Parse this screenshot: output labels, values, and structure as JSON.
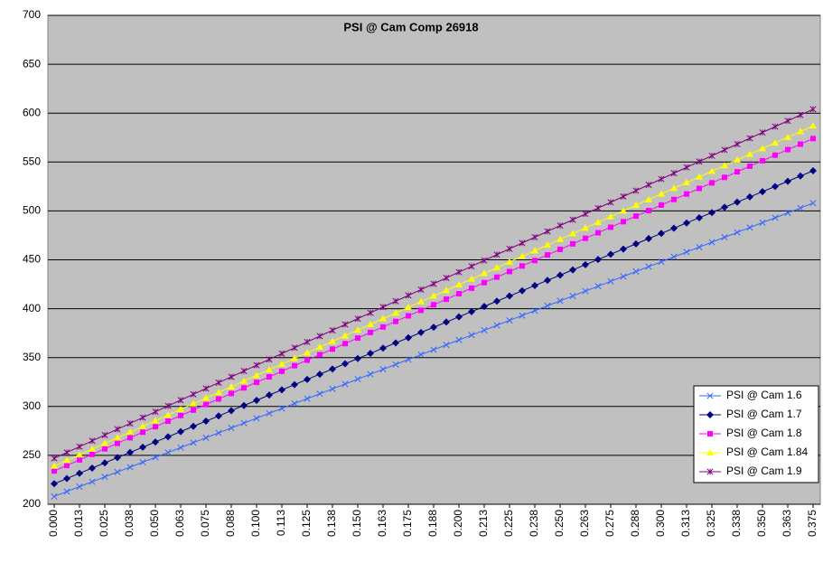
{
  "chart_data": {
    "type": "line",
    "title": "PSI @ Cam Comp 26918",
    "categories": [
      "0.000",
      null,
      "0.013",
      null,
      "0.025",
      null,
      "0.038",
      null,
      "0.050",
      null,
      "0.063",
      null,
      "0.075",
      null,
      "0.088",
      null,
      "0.100",
      null,
      "0.113",
      null,
      "0.125",
      null,
      "0.138",
      null,
      "0.150",
      null,
      "0.163",
      null,
      "0.175",
      null,
      "0.188",
      null,
      "0.200",
      null,
      "0.213",
      null,
      "0.225",
      null,
      "0.238",
      null,
      "0.250",
      null,
      "0.263",
      null,
      "0.275",
      null,
      "0.288",
      null,
      "0.300",
      null,
      "0.313",
      null,
      "0.325",
      null,
      "0.338",
      null,
      "0.350",
      null,
      "0.363",
      null,
      "0.375"
    ],
    "series": [
      {
        "name": "PSI @ Cam 1.6",
        "color": "#3366ff",
        "marker": "x",
        "values": [
          208,
          213,
          218,
          223,
          228,
          233,
          238,
          243,
          248,
          253,
          258,
          263,
          268,
          273,
          278,
          283,
          288,
          293,
          298,
          303,
          308,
          313,
          318,
          323,
          328,
          333,
          338,
          343,
          348,
          353,
          358,
          363,
          368,
          373,
          378,
          383,
          388,
          393,
          398,
          403,
          408,
          413,
          418,
          423,
          428,
          433,
          438,
          443,
          448,
          453,
          458,
          463,
          468,
          473,
          478,
          483,
          488,
          493,
          498,
          503,
          508
        ]
      },
      {
        "name": "PSI @ Cam 1.7",
        "color": "#000080",
        "marker": "diamond",
        "values": [
          221,
          226.3,
          231.7,
          237,
          242.3,
          247.7,
          253,
          258.3,
          263.7,
          269,
          274.3,
          279.7,
          285,
          290.3,
          295.7,
          301,
          306.3,
          311.7,
          317,
          322.3,
          327.7,
          333,
          338.3,
          343.7,
          349,
          354.3,
          359.7,
          365,
          370.3,
          375.7,
          381,
          386.3,
          391.7,
          397,
          402.3,
          407.7,
          413,
          418.3,
          423.7,
          429,
          434.3,
          439.7,
          445,
          450.3,
          455.7,
          461,
          466.3,
          471.7,
          477,
          482.3,
          487.7,
          493,
          498.3,
          503.7,
          509,
          514.3,
          519.7,
          525,
          530.3,
          535.7,
          541
        ]
      },
      {
        "name": "PSI @ Cam 1.8",
        "color": "#ff00ff",
        "marker": "square",
        "values": [
          234,
          239.7,
          245.3,
          251,
          256.7,
          262.3,
          268,
          273.7,
          279.3,
          285,
          290.7,
          296.3,
          302,
          307.7,
          313.3,
          319,
          324.7,
          330.3,
          336,
          341.7,
          347.3,
          353,
          358.7,
          364.3,
          370,
          375.7,
          381.3,
          387,
          392.7,
          398.3,
          404,
          409.7,
          415.3,
          421,
          426.7,
          432.3,
          438,
          443.7,
          449.3,
          455,
          460.7,
          466.3,
          472,
          477.7,
          483.3,
          489,
          494.7,
          500.3,
          506,
          511.7,
          517.3,
          523,
          528.7,
          534.3,
          540,
          545.7,
          551.3,
          557,
          562.7,
          568.3,
          574
        ]
      },
      {
        "name": "PSI @ Cam 1.84",
        "color": "#ffff00",
        "marker": "triangle",
        "values": [
          239,
          244.8,
          250.6,
          256.4,
          262.2,
          268,
          273.8,
          279.6,
          285.4,
          291.2,
          297,
          302.8,
          308.6,
          314.4,
          320.2,
          326,
          331.8,
          337.6,
          343.4,
          349.2,
          355,
          360.8,
          366.6,
          372.4,
          378.2,
          384,
          389.8,
          395.6,
          401.4,
          407.2,
          413,
          418.8,
          424.6,
          430.4,
          436.2,
          442,
          447.8,
          453.6,
          459.4,
          465.2,
          471,
          476.8,
          482.6,
          488.4,
          494.2,
          500,
          505.8,
          511.6,
          517.4,
          523.2,
          529,
          534.8,
          540.6,
          546.4,
          552.2,
          558,
          563.8,
          569.6,
          575.4,
          581.2,
          587
        ]
      },
      {
        "name": "PSI @ Cam 1.9",
        "color": "#800080",
        "marker": "star",
        "values": [
          247,
          253,
          258.9,
          264.9,
          270.8,
          276.8,
          282.7,
          288.7,
          294.6,
          300.6,
          306.5,
          312.5,
          318.4,
          324.4,
          330.3,
          336.3,
          342.2,
          348.2,
          354.1,
          360.1,
          366,
          372,
          377.9,
          383.9,
          389.8,
          395.8,
          401.7,
          407.7,
          413.6,
          419.6,
          425.5,
          431.5,
          437.4,
          443.4,
          449.3,
          455.3,
          461.2,
          467.2,
          473.1,
          479.1,
          485,
          491,
          496.9,
          502.9,
          508.8,
          514.8,
          520.7,
          526.7,
          532.6,
          538.6,
          544.5,
          550.5,
          556.4,
          562.4,
          568.3,
          574.3,
          580.2,
          586.2,
          592.1,
          598.1,
          604
        ]
      }
    ],
    "ylim": [
      200,
      700
    ],
    "yticks": [
      200,
      250,
      300,
      350,
      400,
      450,
      500,
      550,
      600,
      650,
      700
    ],
    "grid": true,
    "legend": "right"
  }
}
